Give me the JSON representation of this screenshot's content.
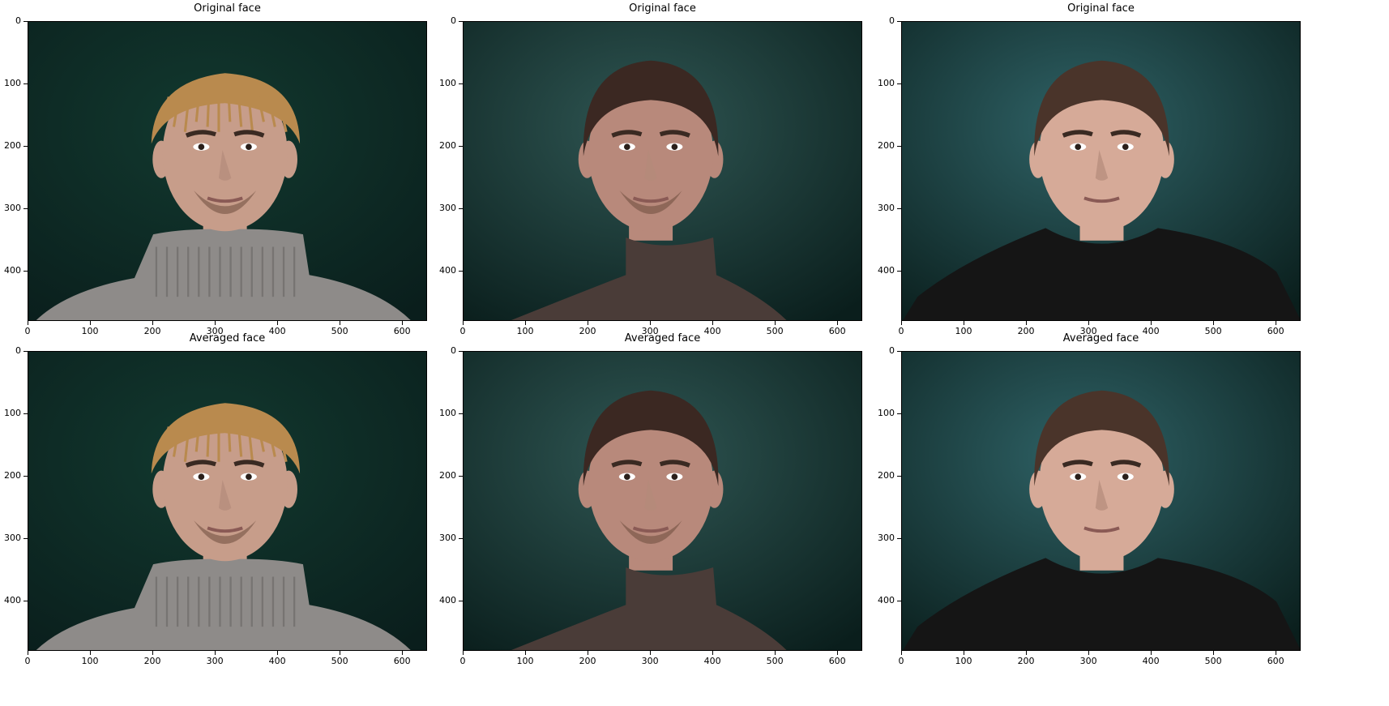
{
  "figure": {
    "panels": [
      {
        "title": "Original face",
        "subject": "blond-man-gray-turtleneck",
        "colors": {
          "background": "#12392f",
          "hair": "#b98a4e",
          "skin": "#c79d8a",
          "clothing": "#8e8b89"
        }
      },
      {
        "title": "Original face",
        "subject": "dark-hair-man-brown-turtleneck",
        "colors": {
          "background": "#2f5653",
          "hair": "#3b2822",
          "skin": "#b8897b",
          "clothing": "#4a3c38"
        }
      },
      {
        "title": "Original face",
        "subject": "brown-hair-man-black-shirt",
        "colors": {
          "background": "#2f6266",
          "hair": "#4a342a",
          "skin": "#d6aa98",
          "clothing": "#151515"
        }
      },
      {
        "title": "Averaged face",
        "subject": "blond-man-gray-turtleneck",
        "colors": {
          "background": "#12392f",
          "hair": "#b98a4e",
          "skin": "#c79d8a",
          "clothing": "#8e8b89"
        }
      },
      {
        "title": "Averaged face",
        "subject": "dark-hair-man-brown-turtleneck",
        "colors": {
          "background": "#2f5653",
          "hair": "#3b2822",
          "skin": "#b8897b",
          "clothing": "#4a3c38"
        }
      },
      {
        "title": "Averaged face",
        "subject": "brown-hair-man-black-shirt",
        "colors": {
          "background": "#2f6266",
          "hair": "#4a342a",
          "skin": "#d6aa98",
          "clothing": "#151515"
        }
      }
    ],
    "axes": {
      "x_ticks": [
        "0",
        "100",
        "200",
        "300",
        "400",
        "500",
        "600"
      ],
      "y_ticks": [
        "0",
        "100",
        "200",
        "300",
        "400"
      ],
      "x_range": [
        0,
        640
      ],
      "y_range": [
        0,
        480
      ]
    }
  }
}
